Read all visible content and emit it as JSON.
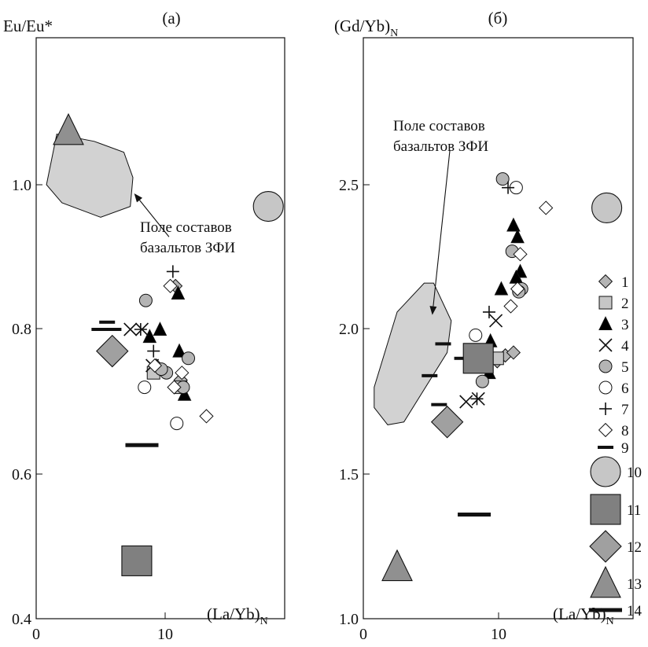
{
  "chart_data": [
    {
      "type": "scatter",
      "title": "(а)",
      "xlabel": "(La/Yb)",
      "xlabel_sub": "N",
      "ylabel": "Eu/Eu*",
      "ylabel_sub": "",
      "xlim": [
        0,
        18
      ],
      "ylim": [
        0.4,
        1.2
      ],
      "xticks": [
        "0",
        "10"
      ],
      "yticks": [
        "0.4",
        "0.6",
        "0.8",
        "1.0"
      ],
      "grid": false,
      "field_label": [
        "Поле составов",
        "базальтов ЗФИ"
      ],
      "field_polygon": [
        [
          0.8,
          1.0
        ],
        [
          1.6,
          1.07
        ],
        [
          4.5,
          1.06
        ],
        [
          6.8,
          1.045
        ],
        [
          7.5,
          1.01
        ],
        [
          7.3,
          0.97
        ],
        [
          5.0,
          0.955
        ],
        [
          2.0,
          0.975
        ]
      ],
      "arrow": {
        "from": [
          10.3,
          0.928
        ],
        "to": [
          7.6,
          0.988
        ]
      },
      "points": [
        {
          "s": 1,
          "x": 11.2,
          "y": 0.73
        },
        {
          "s": 1,
          "x": 10.8,
          "y": 0.86
        },
        {
          "s": 1,
          "x": 9.3,
          "y": 0.75
        },
        {
          "s": 2,
          "x": 9.1,
          "y": 0.74
        },
        {
          "s": 2,
          "x": 11.2,
          "y": 0.72
        },
        {
          "s": 3,
          "x": 11.0,
          "y": 0.85
        },
        {
          "s": 3,
          "x": 9.6,
          "y": 0.8
        },
        {
          "s": 3,
          "x": 8.8,
          "y": 0.79
        },
        {
          "s": 3,
          "x": 11.1,
          "y": 0.77
        },
        {
          "s": 3,
          "x": 11.5,
          "y": 0.71
        },
        {
          "s": 4,
          "x": 7.3,
          "y": 0.8
        },
        {
          "s": 4,
          "x": 8.2,
          "y": 0.8
        },
        {
          "s": 4,
          "x": 9.0,
          "y": 0.75
        },
        {
          "s": 5,
          "x": 8.5,
          "y": 0.84
        },
        {
          "s": 5,
          "x": 11.8,
          "y": 0.76
        },
        {
          "s": 5,
          "x": 10.1,
          "y": 0.74
        },
        {
          "s": 5,
          "x": 11.4,
          "y": 0.72
        },
        {
          "s": 5,
          "x": 9.7,
          "y": 0.745
        },
        {
          "s": 6,
          "x": 8.4,
          "y": 0.72
        },
        {
          "s": 6,
          "x": 10.9,
          "y": 0.67
        },
        {
          "s": 7,
          "x": 10.6,
          "y": 0.88
        },
        {
          "s": 7,
          "x": 8.1,
          "y": 0.8
        },
        {
          "s": 7,
          "x": 9.1,
          "y": 0.77
        },
        {
          "s": 8,
          "x": 10.4,
          "y": 0.86
        },
        {
          "s": 8,
          "x": 9.2,
          "y": 0.75
        },
        {
          "s": 8,
          "x": 11.3,
          "y": 0.74
        },
        {
          "s": 8,
          "x": 10.7,
          "y": 0.72
        },
        {
          "s": 8,
          "x": 13.2,
          "y": 0.68
        },
        {
          "s": 9,
          "x": 5.5,
          "y": 0.81
        },
        {
          "s": 9,
          "x": 6.0,
          "y": 0.8
        },
        {
          "s": 9,
          "x": 4.9,
          "y": 0.8
        },
        {
          "s": 10,
          "x": 18.0,
          "y": 0.97
        },
        {
          "s": 11,
          "x": 7.8,
          "y": 0.48
        },
        {
          "s": 12,
          "x": 5.9,
          "y": 0.77
        },
        {
          "s": 13,
          "x": 2.5,
          "y": 1.075
        },
        {
          "s": 14,
          "x": 8.2,
          "y": 0.64
        }
      ]
    },
    {
      "type": "scatter",
      "title": "(б)",
      "xlabel": "(La/Yb)",
      "xlabel_sub": "N",
      "ylabel": "(Gd/Yb)",
      "ylabel_sub": "N",
      "xlim": [
        0,
        18
      ],
      "ylim": [
        1.0,
        3.0
      ],
      "xticks": [
        "0",
        "10"
      ],
      "yticks": [
        "1.0",
        "1.5",
        "2.0",
        "2.5"
      ],
      "grid": false,
      "field_label": [
        "Поле составов",
        "базальтов ЗФИ"
      ],
      "field_polygon": [
        [
          1.8,
          1.67
        ],
        [
          0.8,
          1.73
        ],
        [
          0.8,
          1.8
        ],
        [
          2.5,
          2.06
        ],
        [
          4.5,
          2.16
        ],
        [
          5.2,
          2.16
        ],
        [
          6.5,
          2.03
        ],
        [
          6.2,
          1.92
        ],
        [
          3.0,
          1.68
        ]
      ],
      "arrow": {
        "from": [
          6.4,
          2.62
        ],
        "to": [
          5.1,
          2.05
        ]
      },
      "points": [
        {
          "s": 1,
          "x": 9.9,
          "y": 1.89
        },
        {
          "s": 1,
          "x": 10.5,
          "y": 1.91
        },
        {
          "s": 1,
          "x": 11.1,
          "y": 1.92
        },
        {
          "s": 2,
          "x": 9.9,
          "y": 1.9
        },
        {
          "s": 3,
          "x": 11.1,
          "y": 2.36
        },
        {
          "s": 3,
          "x": 11.4,
          "y": 2.32
        },
        {
          "s": 3,
          "x": 11.6,
          "y": 2.2
        },
        {
          "s": 3,
          "x": 11.3,
          "y": 2.18
        },
        {
          "s": 3,
          "x": 10.2,
          "y": 2.14
        },
        {
          "s": 3,
          "x": 9.4,
          "y": 1.96
        },
        {
          "s": 3,
          "x": 9.3,
          "y": 1.85
        },
        {
          "s": 4,
          "x": 9.8,
          "y": 2.03
        },
        {
          "s": 4,
          "x": 8.5,
          "y": 1.76
        },
        {
          "s": 4,
          "x": 7.6,
          "y": 1.75
        },
        {
          "s": 5,
          "x": 10.3,
          "y": 2.52
        },
        {
          "s": 5,
          "x": 11.0,
          "y": 2.27
        },
        {
          "s": 5,
          "x": 11.7,
          "y": 2.14
        },
        {
          "s": 5,
          "x": 11.5,
          "y": 2.13
        },
        {
          "s": 5,
          "x": 8.8,
          "y": 1.82
        },
        {
          "s": 6,
          "x": 11.3,
          "y": 2.49
        },
        {
          "s": 6,
          "x": 8.3,
          "y": 1.98
        },
        {
          "s": 7,
          "x": 10.7,
          "y": 2.49
        },
        {
          "s": 7,
          "x": 9.3,
          "y": 2.06
        },
        {
          "s": 7,
          "x": 8.4,
          "y": 1.76
        },
        {
          "s": 8,
          "x": 13.5,
          "y": 2.42
        },
        {
          "s": 8,
          "x": 11.6,
          "y": 2.26
        },
        {
          "s": 8,
          "x": 11.4,
          "y": 2.14
        },
        {
          "s": 8,
          "x": 10.9,
          "y": 2.08
        },
        {
          "s": 9,
          "x": 5.9,
          "y": 1.95
        },
        {
          "s": 9,
          "x": 7.3,
          "y": 1.9
        },
        {
          "s": 9,
          "x": 4.9,
          "y": 1.84
        },
        {
          "s": 9,
          "x": 5.6,
          "y": 1.74
        },
        {
          "s": 10,
          "x": 18.0,
          "y": 2.42
        },
        {
          "s": 11,
          "x": 8.5,
          "y": 1.9
        },
        {
          "s": 12,
          "x": 6.2,
          "y": 1.68
        },
        {
          "s": 13,
          "x": 2.5,
          "y": 1.18
        },
        {
          "s": 14,
          "x": 8.2,
          "y": 1.36
        }
      ]
    }
  ],
  "legend": {
    "items": [
      {
        "id": 1,
        "label": "1",
        "marker": "diamond",
        "fill": "#b4b4b4",
        "size": "small"
      },
      {
        "id": 2,
        "label": "2",
        "marker": "square",
        "fill": "#c6c6c6",
        "size": "small"
      },
      {
        "id": 3,
        "label": "3",
        "marker": "triangle",
        "fill": "#000000",
        "size": "small"
      },
      {
        "id": 4,
        "label": "4",
        "marker": "x",
        "fill": "none",
        "size": "small"
      },
      {
        "id": 5,
        "label": "5",
        "marker": "circle",
        "fill": "#b4b4b4",
        "size": "small"
      },
      {
        "id": 6,
        "label": "6",
        "marker": "circle",
        "fill": "#ffffff",
        "size": "small"
      },
      {
        "id": 7,
        "label": "7",
        "marker": "plus",
        "fill": "none",
        "size": "small"
      },
      {
        "id": 8,
        "label": "8",
        "marker": "diamond",
        "fill": "#ffffff",
        "size": "small"
      },
      {
        "id": 9,
        "label": "9",
        "marker": "dash",
        "fill": "#000000",
        "size": "small"
      },
      {
        "id": 10,
        "label": "10",
        "marker": "circle",
        "fill": "#c6c6c6",
        "size": "large"
      },
      {
        "id": 11,
        "label": "11",
        "marker": "square",
        "fill": "#808080",
        "size": "large"
      },
      {
        "id": 12,
        "label": "12",
        "marker": "diamond",
        "fill": "#a0a0a0",
        "size": "large"
      },
      {
        "id": 13,
        "label": "13",
        "marker": "triangle",
        "fill": "#909090",
        "size": "large"
      },
      {
        "id": 14,
        "label": "14",
        "marker": "dash",
        "fill": "#000000",
        "size": "large"
      }
    ]
  },
  "colors": {
    "field_fill": "#d2d2d2",
    "ink": "#111111"
  }
}
